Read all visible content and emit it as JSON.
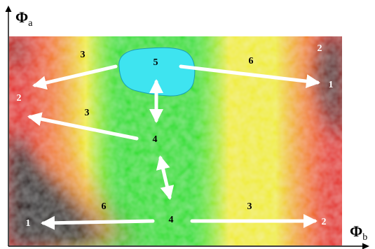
{
  "axes": {
    "y_label_main": "Φ",
    "y_label_sub": "a",
    "x_label_main": "Φ",
    "x_label_sub": "b"
  },
  "colors": {
    "black": "#0b0b0b",
    "red": "#e41d12",
    "orange": "#f27a1c",
    "yellow": "#f0ec20",
    "green": "#17de18",
    "cyan_blob": "#3ee4f0",
    "arrow": "#ffffff",
    "dark_text": "#000000",
    "light_text": "#ffffff"
  },
  "blob_label": "5",
  "nodes": {
    "upper_center": "4",
    "lower_center": "4",
    "top_left_edge": "2",
    "top_right_corner": "2",
    "top_right_edge": "1",
    "bottom_left_edge": "1",
    "bottom_right_edge": "2"
  },
  "arrow_labels": {
    "top_left": "3",
    "top_right": "6",
    "mid_left": "3",
    "bottom_left": "6",
    "bottom_right": "3"
  }
}
